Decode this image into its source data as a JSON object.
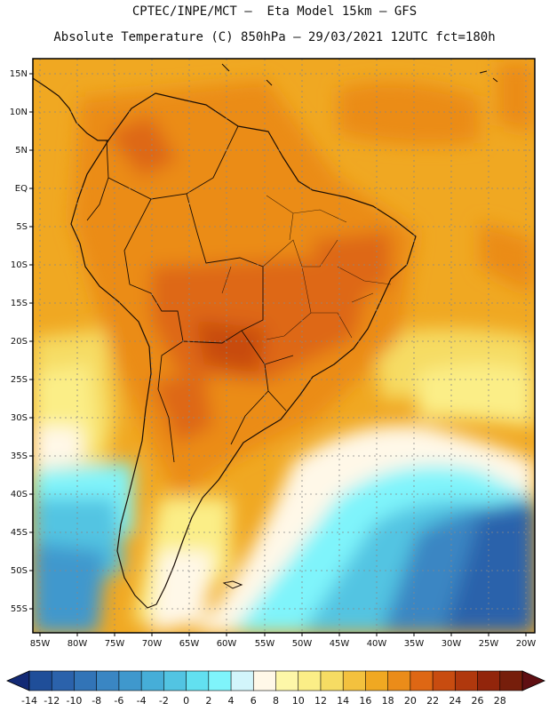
{
  "header": {
    "line1": "CPTEC/INPE/MCT –  Eta Model 15km – GFS",
    "line2": "Absolute Temperature (C) 850hPa – 29/03/2021 12UTC fct=180h"
  },
  "lat_labels": [
    "15N",
    "10N",
    "5N",
    "EQ",
    "5S",
    "10S",
    "15S",
    "20S",
    "25S",
    "30S",
    "35S",
    "40S",
    "45S",
    "50S",
    "55S"
  ],
  "lon_labels": [
    "85W",
    "80W",
    "75W",
    "70W",
    "65W",
    "60W",
    "55W",
    "50W",
    "45W",
    "40W",
    "35W",
    "30W",
    "25W",
    "20W"
  ],
  "colorbar": {
    "labels": [
      "-14",
      "-12",
      "-10",
      "-8",
      "-6",
      "-4",
      "-2",
      "0",
      "2",
      "4",
      "6",
      "8",
      "10",
      "12",
      "14",
      "16",
      "18",
      "20",
      "22",
      "24",
      "26",
      "28"
    ],
    "colors": [
      "#1f4e99",
      "#2b62ab",
      "#3274b7",
      "#3a86c3",
      "#3f98cd",
      "#46aed8",
      "#52c4e2",
      "#62e0f0",
      "#7ff4fb",
      "#d2f5fb",
      "#fff8e8",
      "#fdf7a8",
      "#fbee87",
      "#f6dc63",
      "#f3c13e",
      "#f0a822",
      "#eb8c19",
      "#de6714",
      "#c84c10",
      "#b0380d",
      "#92250b",
      "#761e0b"
    ]
  },
  "icons": {
    "left_arrow": "colorbar-low-arrow",
    "right_arrow": "colorbar-high-arrow"
  }
}
